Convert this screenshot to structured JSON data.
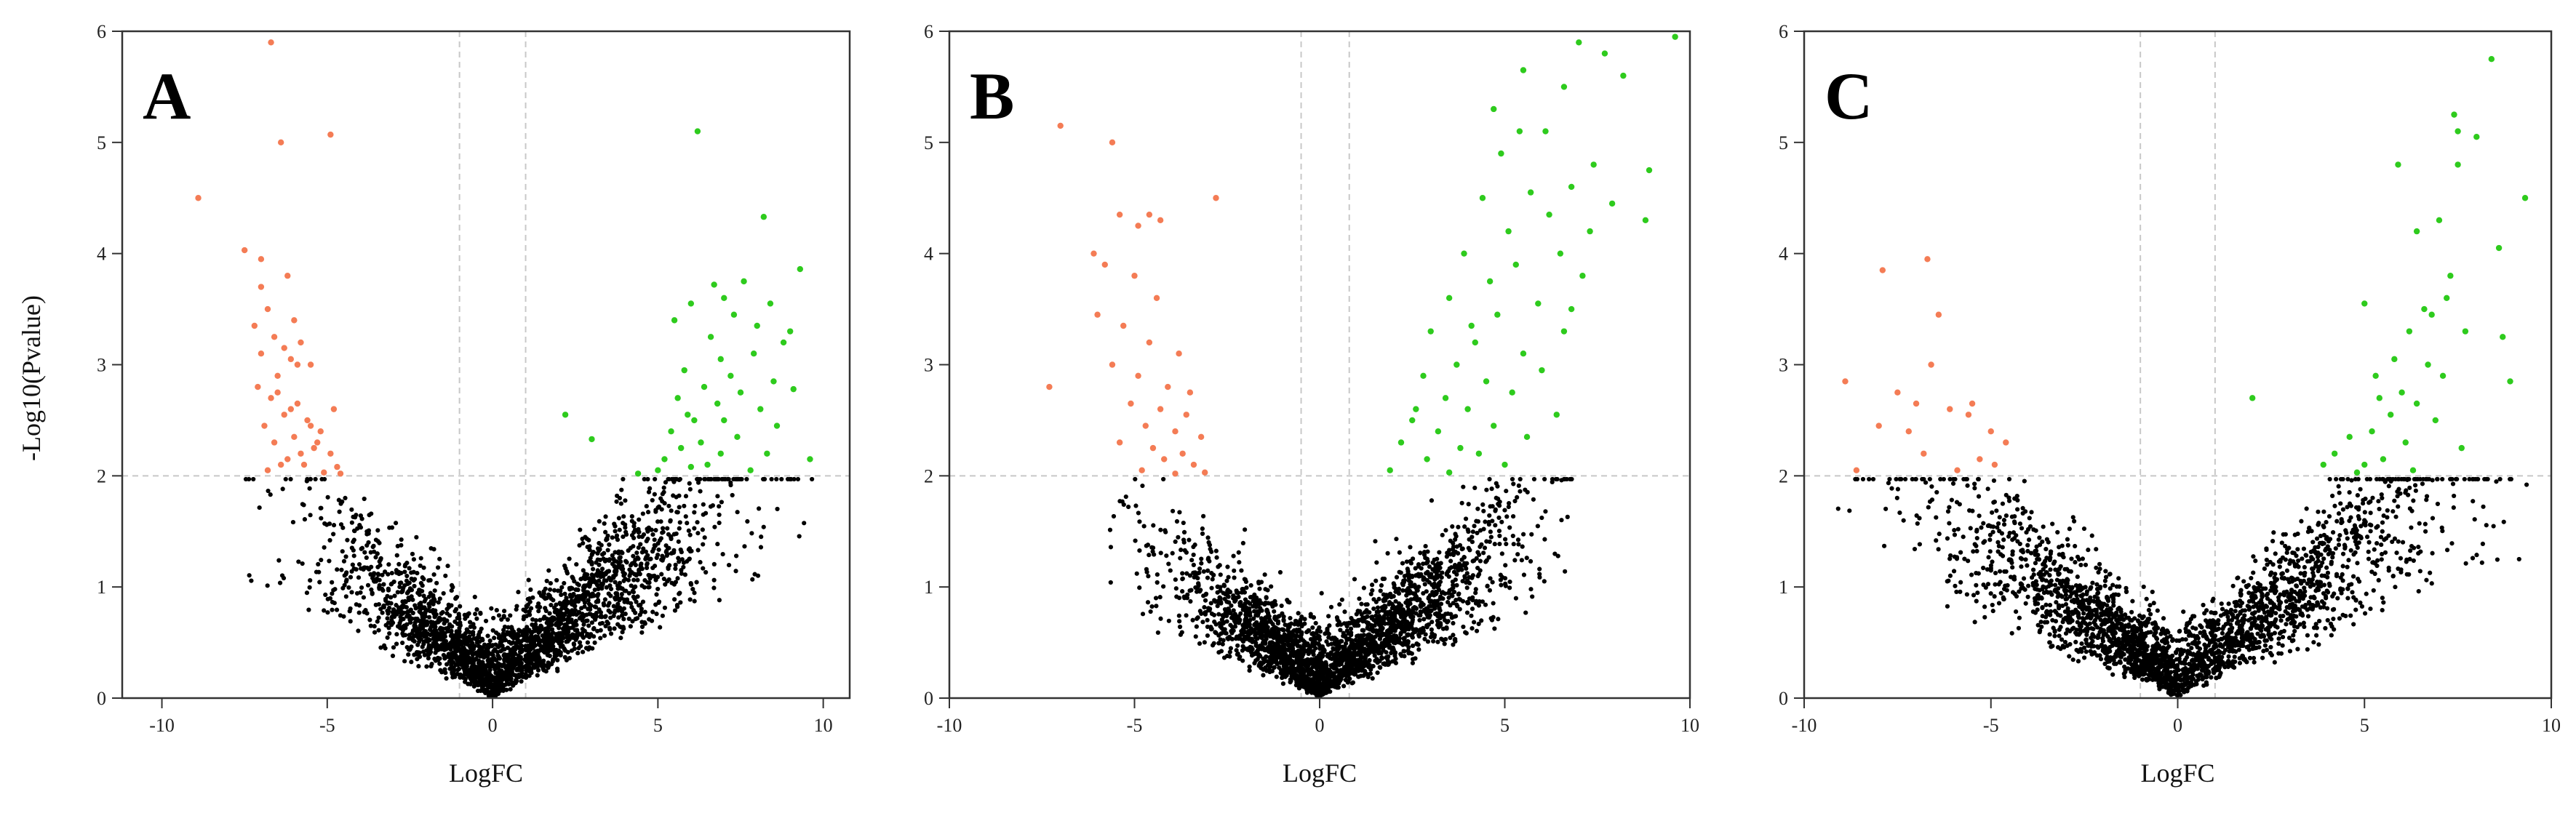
{
  "figure": {
    "panels": [
      "A",
      "B",
      "C"
    ],
    "xlabel": "LogFC",
    "ylabel": "-Log10(Pvalue)"
  },
  "colors": {
    "down": "#f47c55",
    "up": "#2ecb1d",
    "ns": "#000000",
    "guide": "#c8c8c8"
  },
  "chart_data": [
    {
      "panel": "A",
      "type": "scatter",
      "title": "",
      "xlabel": "LogFC",
      "ylabel": "-Log10(Pvalue)",
      "xlim": [
        -11.2,
        10.8
      ],
      "ylim": [
        0,
        6
      ],
      "xticks": [
        -10,
        -5,
        0,
        5,
        10
      ],
      "yticks": [
        0,
        1,
        2,
        3,
        4,
        5,
        6
      ],
      "thresholds": {
        "logfc": [
          -1,
          1
        ],
        "neglog10p": 2
      },
      "grid": false,
      "series": [
        {
          "color_key": "down",
          "points": [
            [
              -6.7,
              5.9
            ],
            [
              -4.9,
              5.07
            ],
            [
              -6.4,
              5.0
            ],
            [
              -8.9,
              4.5
            ],
            [
              -7.5,
              4.03
            ],
            [
              -7.0,
              3.95
            ],
            [
              -6.2,
              3.8
            ],
            [
              -7.0,
              3.7
            ],
            [
              -6.8,
              3.5
            ],
            [
              -6.0,
              3.4
            ],
            [
              -7.2,
              3.35
            ],
            [
              -6.6,
              3.25
            ],
            [
              -5.8,
              3.2
            ],
            [
              -7.0,
              3.1
            ],
            [
              -6.1,
              3.05
            ],
            [
              -5.5,
              3.0
            ],
            [
              -6.5,
              2.9
            ],
            [
              -7.1,
              2.8
            ],
            [
              -6.7,
              2.7
            ],
            [
              -5.9,
              2.65
            ],
            [
              -4.8,
              2.6
            ],
            [
              -6.3,
              2.55
            ],
            [
              -5.6,
              2.5
            ],
            [
              -6.9,
              2.45
            ],
            [
              -5.2,
              2.4
            ],
            [
              -6.0,
              2.35
            ],
            [
              -6.6,
              2.3
            ],
            [
              -5.4,
              2.25
            ],
            [
              -4.9,
              2.2
            ],
            [
              -6.2,
              2.15
            ],
            [
              -5.7,
              2.1
            ],
            [
              -6.8,
              2.05
            ],
            [
              -5.1,
              2.03
            ],
            [
              -4.6,
              2.02
            ],
            [
              -6.4,
              2.1
            ],
            [
              -5.8,
              2.2
            ],
            [
              -5.3,
              2.3
            ],
            [
              -6.1,
              2.6
            ],
            [
              -6.5,
              2.75
            ],
            [
              -5.9,
              3.0
            ],
            [
              -6.3,
              3.15
            ],
            [
              -5.5,
              2.45
            ],
            [
              -4.7,
              2.08
            ]
          ]
        },
        {
          "color_key": "up",
          "points": [
            [
              6.2,
              5.1
            ],
            [
              8.2,
              4.33
            ],
            [
              9.3,
              3.86
            ],
            [
              7.6,
              3.75
            ],
            [
              6.7,
              3.72
            ],
            [
              7.0,
              3.6
            ],
            [
              6.0,
              3.55
            ],
            [
              8.4,
              3.55
            ],
            [
              7.3,
              3.45
            ],
            [
              5.5,
              3.4
            ],
            [
              8.0,
              3.35
            ],
            [
              9.0,
              3.3
            ],
            [
              6.6,
              3.25
            ],
            [
              8.8,
              3.2
            ],
            [
              7.9,
              3.1
            ],
            [
              6.9,
              3.05
            ],
            [
              5.8,
              2.95
            ],
            [
              7.2,
              2.9
            ],
            [
              8.5,
              2.85
            ],
            [
              6.4,
              2.8
            ],
            [
              9.1,
              2.78
            ],
            [
              7.5,
              2.75
            ],
            [
              5.6,
              2.7
            ],
            [
              6.8,
              2.65
            ],
            [
              8.1,
              2.6
            ],
            [
              5.9,
              2.55
            ],
            [
              7.0,
              2.5
            ],
            [
              2.2,
              2.55
            ],
            [
              6.1,
              2.5
            ],
            [
              8.6,
              2.45
            ],
            [
              5.4,
              2.4
            ],
            [
              7.4,
              2.35
            ],
            [
              6.3,
              2.3
            ],
            [
              3.0,
              2.33
            ],
            [
              5.7,
              2.25
            ],
            [
              6.9,
              2.2
            ],
            [
              8.3,
              2.2
            ],
            [
              5.2,
              2.15
            ],
            [
              9.6,
              2.15
            ],
            [
              6.5,
              2.1
            ],
            [
              7.8,
              2.05
            ],
            [
              5.0,
              2.05
            ],
            [
              4.4,
              2.02
            ],
            [
              6.0,
              2.08
            ]
          ]
        }
      ],
      "background": {
        "left_edge": -7.5,
        "right_edge": 9.8,
        "noise_spread_left": 4.5,
        "noise_spread_right": 6.5
      }
    },
    {
      "panel": "B",
      "type": "scatter",
      "title": "",
      "xlabel": "LogFC",
      "ylabel": "",
      "xlim": [
        -10,
        10
      ],
      "ylim": [
        0,
        6
      ],
      "xticks": [
        -10,
        -5,
        0,
        5,
        10
      ],
      "yticks": [
        0,
        1,
        2,
        3,
        4,
        5,
        6
      ],
      "thresholds": {
        "logfc": [
          -0.5,
          0.8
        ],
        "neglog10p": 2
      },
      "grid": false,
      "series": [
        {
          "color_key": "down",
          "points": [
            [
              -7.0,
              5.15
            ],
            [
              -5.6,
              5.0
            ],
            [
              -5.4,
              4.35
            ],
            [
              -4.6,
              4.35
            ],
            [
              -4.9,
              4.25
            ],
            [
              -4.3,
              4.3
            ],
            [
              -6.1,
              4.0
            ],
            [
              -5.8,
              3.9
            ],
            [
              -5.0,
              3.8
            ],
            [
              -4.4,
              3.6
            ],
            [
              -6.0,
              3.45
            ],
            [
              -5.3,
              3.35
            ],
            [
              -4.6,
              3.2
            ],
            [
              -3.8,
              3.1
            ],
            [
              -5.6,
              3.0
            ],
            [
              -4.9,
              2.9
            ],
            [
              -4.1,
              2.8
            ],
            [
              -3.5,
              2.75
            ],
            [
              -5.1,
              2.65
            ],
            [
              -4.3,
              2.6
            ],
            [
              -3.6,
              2.55
            ],
            [
              -4.7,
              2.45
            ],
            [
              -3.9,
              2.4
            ],
            [
              -3.2,
              2.35
            ],
            [
              -5.4,
              2.3
            ],
            [
              -4.5,
              2.25
            ],
            [
              -3.7,
              2.2
            ],
            [
              -4.2,
              2.15
            ],
            [
              -3.4,
              2.1
            ],
            [
              -4.8,
              2.05
            ],
            [
              -3.9,
              2.02
            ],
            [
              -3.1,
              2.03
            ],
            [
              -7.3,
              2.8
            ],
            [
              -2.8,
              4.5
            ]
          ]
        },
        {
          "color_key": "up",
          "points": [
            [
              9.6,
              5.95
            ],
            [
              7.0,
              5.9
            ],
            [
              7.7,
              5.8
            ],
            [
              8.2,
              5.6
            ],
            [
              5.5,
              5.65
            ],
            [
              6.6,
              5.5
            ],
            [
              4.7,
              5.3
            ],
            [
              6.1,
              5.1
            ],
            [
              5.4,
              5.1
            ],
            [
              8.9,
              4.75
            ],
            [
              7.4,
              4.8
            ],
            [
              4.9,
              4.9
            ],
            [
              6.8,
              4.6
            ],
            [
              5.7,
              4.55
            ],
            [
              4.4,
              4.5
            ],
            [
              7.9,
              4.45
            ],
            [
              6.2,
              4.35
            ],
            [
              5.1,
              4.2
            ],
            [
              8.8,
              4.3
            ],
            [
              3.9,
              4.0
            ],
            [
              6.5,
              4.0
            ],
            [
              5.3,
              3.9
            ],
            [
              4.6,
              3.75
            ],
            [
              7.1,
              3.8
            ],
            [
              3.5,
              3.6
            ],
            [
              5.9,
              3.55
            ],
            [
              4.8,
              3.45
            ],
            [
              6.6,
              3.3
            ],
            [
              3.0,
              3.3
            ],
            [
              4.2,
              3.2
            ],
            [
              5.5,
              3.1
            ],
            [
              3.7,
              3.0
            ],
            [
              6.0,
              2.95
            ],
            [
              4.5,
              2.85
            ],
            [
              2.8,
              2.9
            ],
            [
              5.2,
              2.75
            ],
            [
              3.4,
              2.7
            ],
            [
              4.0,
              2.6
            ],
            [
              6.4,
              2.55
            ],
            [
              2.5,
              2.5
            ],
            [
              4.7,
              2.45
            ],
            [
              3.2,
              2.4
            ],
            [
              5.6,
              2.35
            ],
            [
              2.2,
              2.3
            ],
            [
              3.8,
              2.25
            ],
            [
              4.3,
              2.2
            ],
            [
              2.9,
              2.15
            ],
            [
              5.0,
              2.1
            ],
            [
              1.9,
              2.05
            ],
            [
              3.5,
              2.03
            ],
            [
              6.8,
              3.5
            ],
            [
              4.1,
              3.35
            ],
            [
              7.3,
              4.2
            ],
            [
              2.6,
              2.6
            ]
          ]
        }
      ],
      "background": {
        "left_edge": -5.7,
        "right_edge": 6.9,
        "noise_spread_left": 3.5,
        "noise_spread_right": 5.0
      }
    },
    {
      "panel": "C",
      "type": "scatter",
      "title": "",
      "xlabel": "LogFC",
      "ylabel": "",
      "xlim": [
        -10,
        10
      ],
      "ylim": [
        0,
        6
      ],
      "xticks": [
        -10,
        -5,
        0,
        5,
        10
      ],
      "yticks": [
        0,
        1,
        2,
        3,
        4,
        5,
        6
      ],
      "thresholds": {
        "logfc": [
          -1,
          1
        ],
        "neglog10p": 2
      },
      "grid": false,
      "series": [
        {
          "color_key": "down",
          "points": [
            [
              -6.7,
              3.95
            ],
            [
              -7.9,
              3.85
            ],
            [
              -6.4,
              3.45
            ],
            [
              -6.6,
              3.0
            ],
            [
              -7.5,
              2.75
            ],
            [
              -6.1,
              2.6
            ],
            [
              -8.9,
              2.85
            ],
            [
              -7.0,
              2.65
            ],
            [
              -5.6,
              2.55
            ],
            [
              -8.0,
              2.45
            ],
            [
              -5.0,
              2.4
            ],
            [
              -4.6,
              2.3
            ],
            [
              -6.8,
              2.2
            ],
            [
              -5.3,
              2.15
            ],
            [
              -8.6,
              2.05
            ],
            [
              -5.9,
              2.05
            ],
            [
              -4.9,
              2.1
            ],
            [
              -5.5,
              2.65
            ],
            [
              -7.2,
              2.4
            ]
          ]
        },
        {
          "color_key": "up",
          "points": [
            [
              8.4,
              5.75
            ],
            [
              7.4,
              5.25
            ],
            [
              7.5,
              5.1
            ],
            [
              8.0,
              5.05
            ],
            [
              5.9,
              4.8
            ],
            [
              7.5,
              4.8
            ],
            [
              9.3,
              4.5
            ],
            [
              7.0,
              4.3
            ],
            [
              6.4,
              4.2
            ],
            [
              8.6,
              4.05
            ],
            [
              5.0,
              3.55
            ],
            [
              7.2,
              3.6
            ],
            [
              6.6,
              3.5
            ],
            [
              6.2,
              3.3
            ],
            [
              7.7,
              3.3
            ],
            [
              8.7,
              3.25
            ],
            [
              5.8,
              3.05
            ],
            [
              6.7,
              3.0
            ],
            [
              7.1,
              2.9
            ],
            [
              8.9,
              2.85
            ],
            [
              6.0,
              2.75
            ],
            [
              5.4,
              2.7
            ],
            [
              6.4,
              2.65
            ],
            [
              2.0,
              2.7
            ],
            [
              5.7,
              2.55
            ],
            [
              6.9,
              2.5
            ],
            [
              5.2,
              2.4
            ],
            [
              4.6,
              2.35
            ],
            [
              6.1,
              2.3
            ],
            [
              7.6,
              2.25
            ],
            [
              4.2,
              2.2
            ],
            [
              5.5,
              2.15
            ],
            [
              3.9,
              2.1
            ],
            [
              6.3,
              2.05
            ],
            [
              4.8,
              2.03
            ],
            [
              5.0,
              2.1
            ],
            [
              7.3,
              3.8
            ],
            [
              6.8,
              3.45
            ],
            [
              5.3,
              2.9
            ]
          ]
        }
      ],
      "background": {
        "left_edge": -9.6,
        "right_edge": 9.5,
        "noise_spread_left": 5.5,
        "noise_spread_right": 6.5
      }
    }
  ]
}
